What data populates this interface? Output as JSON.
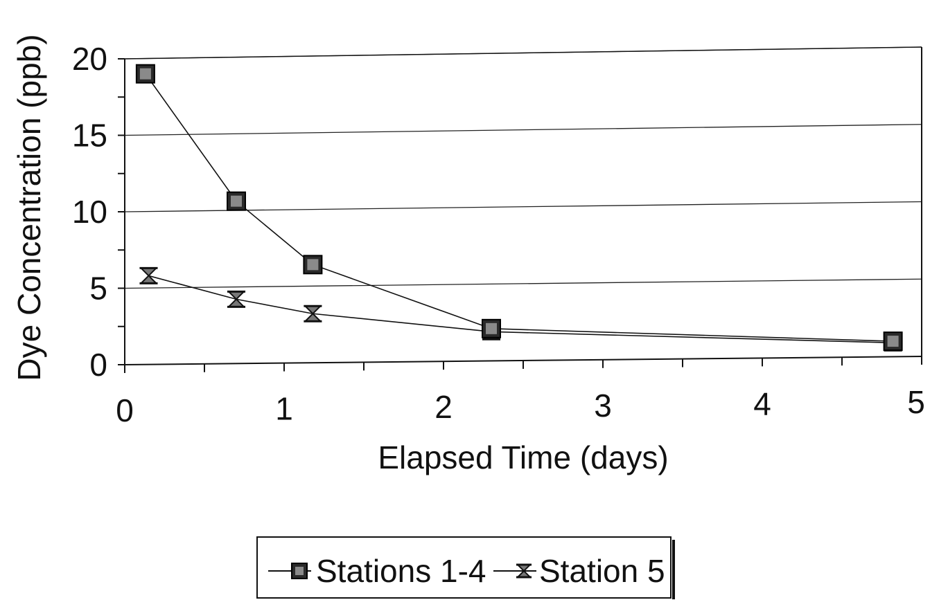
{
  "chart_data": {
    "type": "line",
    "title": "",
    "xlabel": "Elapsed Time (days)",
    "ylabel": "Dye Concentration (ppb)",
    "xlim": [
      0,
      5
    ],
    "ylim": [
      0,
      20
    ],
    "x_ticks": [
      "0",
      "1",
      "2",
      "3",
      "4",
      "5"
    ],
    "y_ticks": [
      "0",
      "5",
      "10",
      "15",
      "20"
    ],
    "grid": "horizontal",
    "legend_position": "bottom",
    "series": [
      {
        "name": "Stations 1-4",
        "marker": "square",
        "x": [
          0.13,
          0.7,
          1.18,
          2.3,
          4.82
        ],
        "y": [
          19.0,
          10.6,
          6.4,
          2.1,
          1.0
        ]
      },
      {
        "name": "Station 5",
        "marker": "hourglass",
        "x": [
          0.15,
          0.7,
          1.18,
          2.3,
          4.82
        ],
        "y": [
          5.8,
          4.2,
          3.2,
          1.9,
          0.9
        ]
      }
    ]
  }
}
